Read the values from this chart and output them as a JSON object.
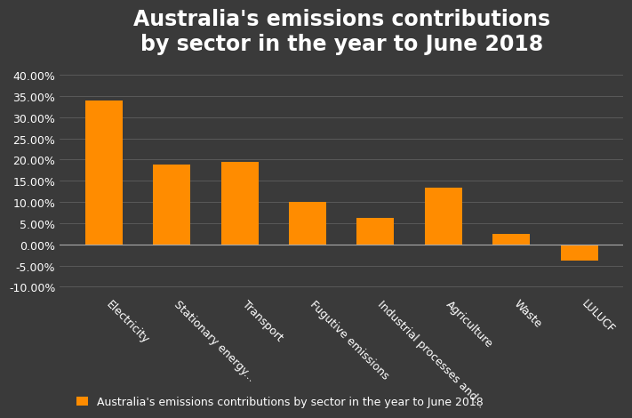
{
  "title": "Australia's emissions contributions\nby sector in the year to June 2018",
  "categories": [
    "Electricity",
    "Stationary energy...",
    "Transport",
    "Fugutive emissions",
    "Industrial processes and...",
    "Agriculture",
    "Waste",
    "LULUCF"
  ],
  "values": [
    0.339,
    0.189,
    0.194,
    0.101,
    0.063,
    0.134,
    0.024,
    -0.038
  ],
  "bar_color": "#FF8C00",
  "background_color": "#3a3a3a",
  "text_color": "#ffffff",
  "grid_color": "#666666",
  "legend_label": "Australia's emissions contributions by sector in the year to June 2018",
  "ylim": [
    -0.115,
    0.43
  ],
  "yticks": [
    -0.1,
    -0.05,
    0.0,
    0.05,
    0.1,
    0.15,
    0.2,
    0.25,
    0.3,
    0.35,
    0.4
  ],
  "title_fontsize": 17,
  "tick_fontsize": 9,
  "legend_fontsize": 9
}
